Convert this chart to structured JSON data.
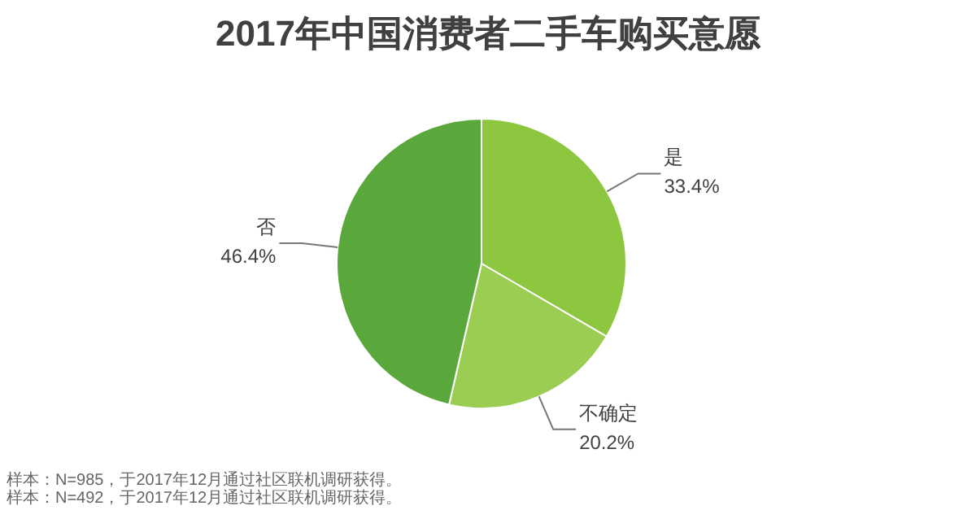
{
  "chart_data": {
    "type": "pie",
    "title": "2017年中国消费者二手车购买意愿",
    "categories": [
      "是",
      "不确定",
      "否"
    ],
    "values": [
      33.4,
      20.2,
      46.4
    ],
    "colors": [
      "#8dc63f",
      "#9acd52",
      "#5aa83c"
    ],
    "value_labels": [
      "33.4%",
      "20.2%",
      "46.4%"
    ],
    "annotations": [
      "样本：N=985，于2017年12月通过社区联机调研获得。",
      "样本：N=492，于2017年12月通过社区联机调研获得。"
    ]
  }
}
